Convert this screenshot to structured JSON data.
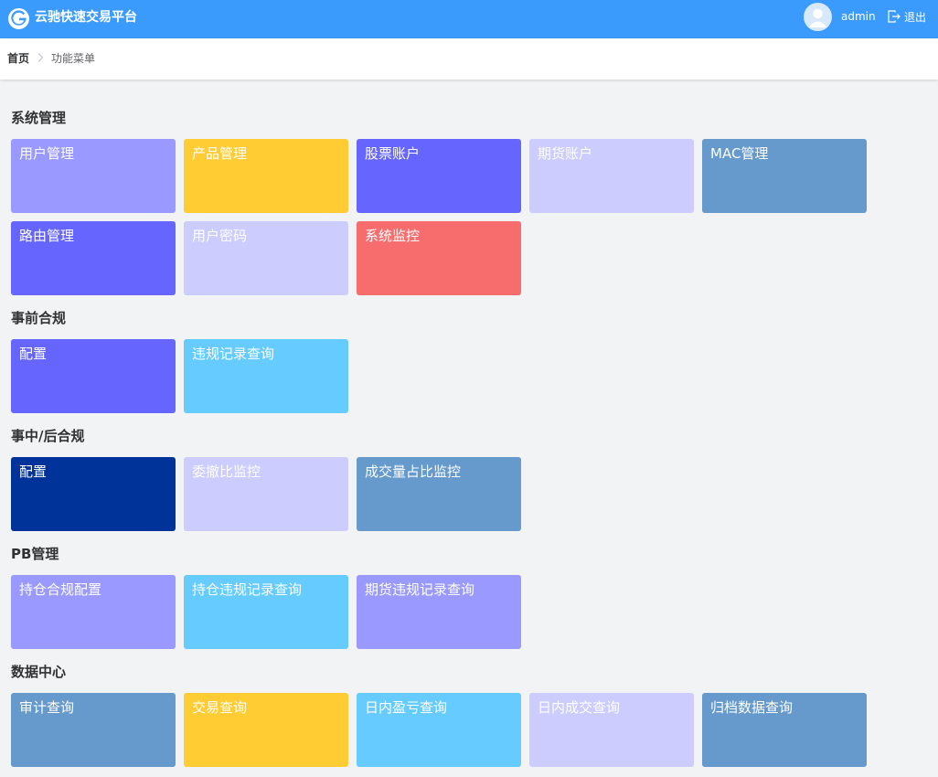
{
  "header": {
    "app_title": "云驰快速交易平台",
    "username": "admin",
    "logout_label": "退出"
  },
  "breadcrumb": {
    "home": "首页",
    "current": "功能菜单"
  },
  "sections": [
    {
      "title": "系统管理",
      "tiles": [
        {
          "label": "用户管理",
          "color": "#9999ff"
        },
        {
          "label": "产品管理",
          "color": "#ffcc33"
        },
        {
          "label": "股票账户",
          "color": "#6666ff"
        },
        {
          "label": "期货账户",
          "color": "#ccccff"
        },
        {
          "label": "MAC管理",
          "color": "#6699cc"
        },
        {
          "label": "路由管理",
          "color": "#6666ff"
        },
        {
          "label": "用户密码",
          "color": "#ccccff"
        },
        {
          "label": "系统监控",
          "color": "#f76c6c"
        }
      ]
    },
    {
      "title": "事前合规",
      "tiles": [
        {
          "label": "配置",
          "color": "#6666ff"
        },
        {
          "label": "违规记录查询",
          "color": "#66ccff"
        }
      ]
    },
    {
      "title": "事中/后合规",
      "tiles": [
        {
          "label": "配置",
          "color": "#003399"
        },
        {
          "label": "委撤比监控",
          "color": "#ccccff"
        },
        {
          "label": "成交量占比监控",
          "color": "#6699cc"
        }
      ]
    },
    {
      "title": "PB管理",
      "tiles": [
        {
          "label": "持仓合规配置",
          "color": "#9999ff"
        },
        {
          "label": "持仓违规记录查询",
          "color": "#66ccff"
        },
        {
          "label": "期货违规记录查询",
          "color": "#9999ff"
        }
      ]
    },
    {
      "title": "数据中心",
      "tiles": [
        {
          "label": "审计查询",
          "color": "#6699cc"
        },
        {
          "label": "交易查询",
          "color": "#ffcc33"
        },
        {
          "label": "日内盈亏查询",
          "color": "#66ccff"
        },
        {
          "label": "日内成交查询",
          "color": "#ccccff"
        },
        {
          "label": "归档数据查询",
          "color": "#6699cc"
        }
      ]
    }
  ]
}
